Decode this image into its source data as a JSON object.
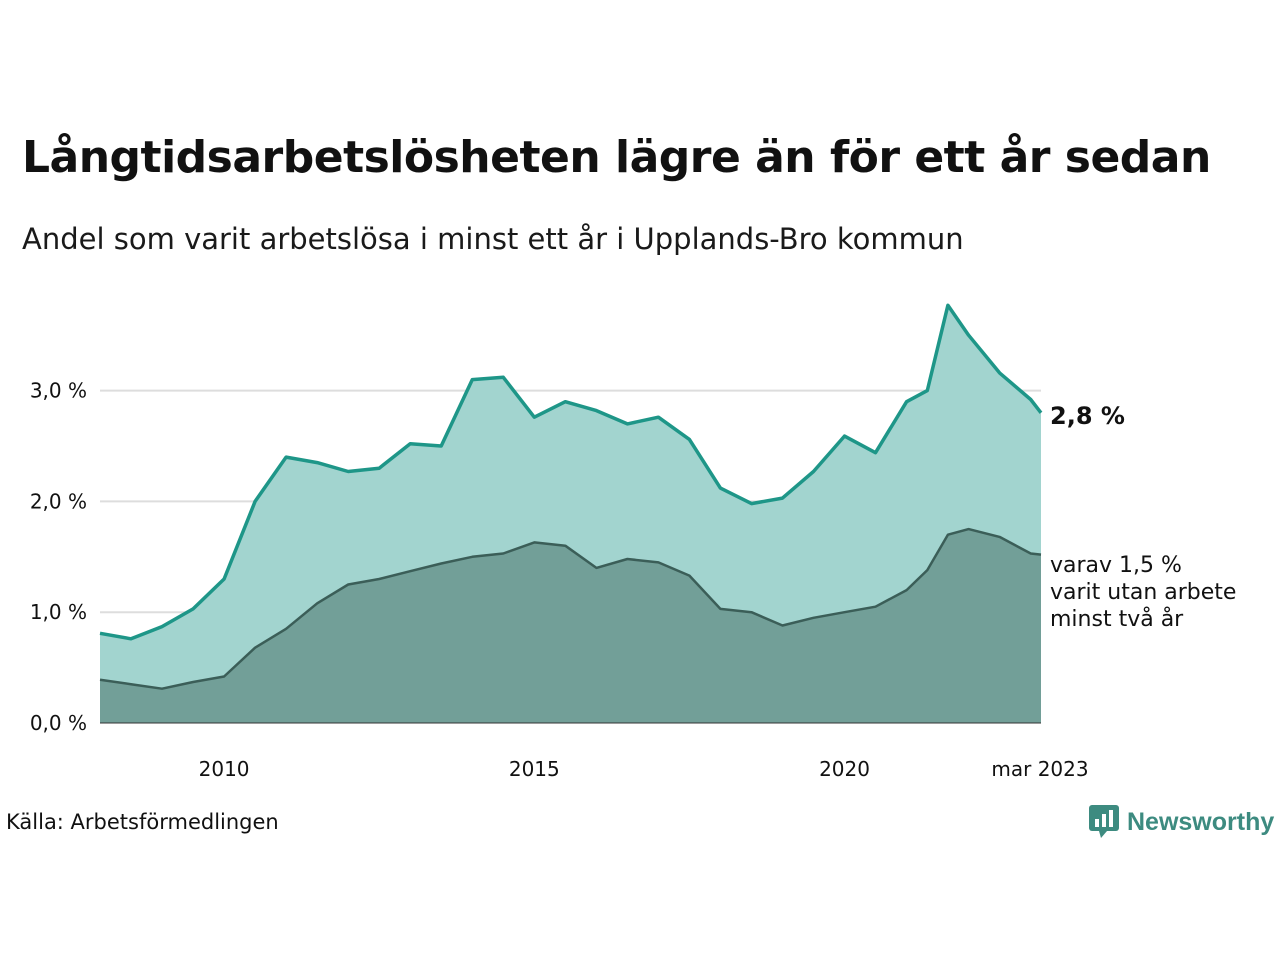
{
  "header": {
    "title": "Långtidsarbetslösheten lägre än för ett år sedan",
    "subtitle": "Andel som varit arbetslösa i minst ett år i Upplands-Bro kommun"
  },
  "footer": {
    "source": "Källa: Arbetsförmedlingen",
    "brand": "Newsworthy"
  },
  "colors": {
    "main_line": "#1e9688",
    "main_fill": "#a2d4cf",
    "sub_line": "#3b5e58",
    "sub_fill": "#729f98",
    "grid": "#dddddd",
    "brand": "#3d8b80"
  },
  "chart_data": {
    "type": "area",
    "x_start": "2008-01",
    "x_end": "2023-03",
    "ylim": [
      0,
      3.8
    ],
    "y_ticks": [
      0,
      1,
      2,
      3
    ],
    "y_tick_labels": [
      "0,0 %",
      "1,0 %",
      "2,0 %",
      "3,0 %"
    ],
    "x_ticks": [
      {
        "date": "2010-01",
        "label": "2010"
      },
      {
        "date": "2015-01",
        "label": "2015"
      },
      {
        "date": "2020-01",
        "label": "2020"
      },
      {
        "date": "2023-03",
        "label": "mar 2023"
      }
    ],
    "series": [
      {
        "key": "total",
        "dates": [
          "2008-01",
          "2008-07",
          "2009-01",
          "2009-07",
          "2010-01",
          "2010-07",
          "2011-01",
          "2011-07",
          "2012-01",
          "2012-07",
          "2013-01",
          "2013-07",
          "2014-01",
          "2014-07",
          "2015-01",
          "2015-07",
          "2016-01",
          "2016-07",
          "2017-01",
          "2017-07",
          "2018-01",
          "2018-07",
          "2019-01",
          "2019-07",
          "2020-01",
          "2020-07",
          "2021-01",
          "2021-05",
          "2021-09",
          "2022-01",
          "2022-07",
          "2023-01",
          "2023-03"
        ],
        "values": [
          0.81,
          0.76,
          0.87,
          1.03,
          1.3,
          2.0,
          2.4,
          2.35,
          2.27,
          2.3,
          2.52,
          2.5,
          3.1,
          3.12,
          2.76,
          2.9,
          2.82,
          2.7,
          2.76,
          2.56,
          2.12,
          1.98,
          2.03,
          2.27,
          2.59,
          2.44,
          2.9,
          3.0,
          3.77,
          3.5,
          3.16,
          2.92,
          2.8
        ]
      },
      {
        "key": "two_years",
        "dates": [
          "2008-01",
          "2008-07",
          "2009-01",
          "2009-07",
          "2010-01",
          "2010-07",
          "2011-01",
          "2011-07",
          "2012-01",
          "2012-07",
          "2013-01",
          "2013-07",
          "2014-01",
          "2014-07",
          "2015-01",
          "2015-07",
          "2016-01",
          "2016-07",
          "2017-01",
          "2017-07",
          "2018-01",
          "2018-07",
          "2019-01",
          "2019-07",
          "2020-01",
          "2020-07",
          "2021-01",
          "2021-05",
          "2021-09",
          "2022-01",
          "2022-07",
          "2023-01",
          "2023-03"
        ],
        "values": [
          0.39,
          0.35,
          0.31,
          0.37,
          0.42,
          0.68,
          0.85,
          1.08,
          1.25,
          1.3,
          1.37,
          1.44,
          1.5,
          1.53,
          1.63,
          1.6,
          1.4,
          1.48,
          1.45,
          1.33,
          1.03,
          1.0,
          0.88,
          0.95,
          1.0,
          1.05,
          1.2,
          1.38,
          1.7,
          1.75,
          1.68,
          1.53,
          1.52
        ]
      }
    ],
    "annotations": {
      "total_label": "2,8 %",
      "sub_label_lines": [
        "varav 1,5 %",
        "varit utan arbete",
        "minst två år"
      ]
    }
  }
}
